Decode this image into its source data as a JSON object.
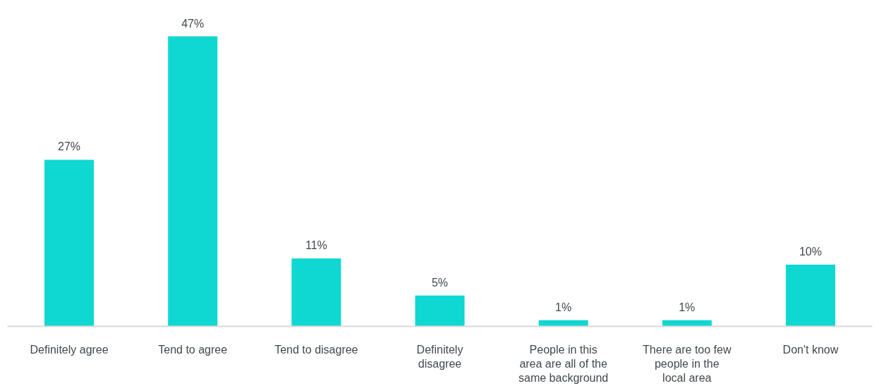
{
  "chart_data": {
    "type": "bar",
    "categories": [
      "Definitely agree",
      "Tend to agree",
      "Tend to disagree",
      "Definitely\ndisagree",
      "People in this\narea are all of the\nsame background",
      "There are too few\npeople in the\nlocal area",
      "Don't know"
    ],
    "values": [
      27,
      47,
      11,
      5,
      1,
      1,
      10
    ],
    "value_labels": [
      "27%",
      "47%",
      "11%",
      "5%",
      "1%",
      "1%",
      "10%"
    ],
    "color": "#0fd8d3",
    "grid": false
  }
}
